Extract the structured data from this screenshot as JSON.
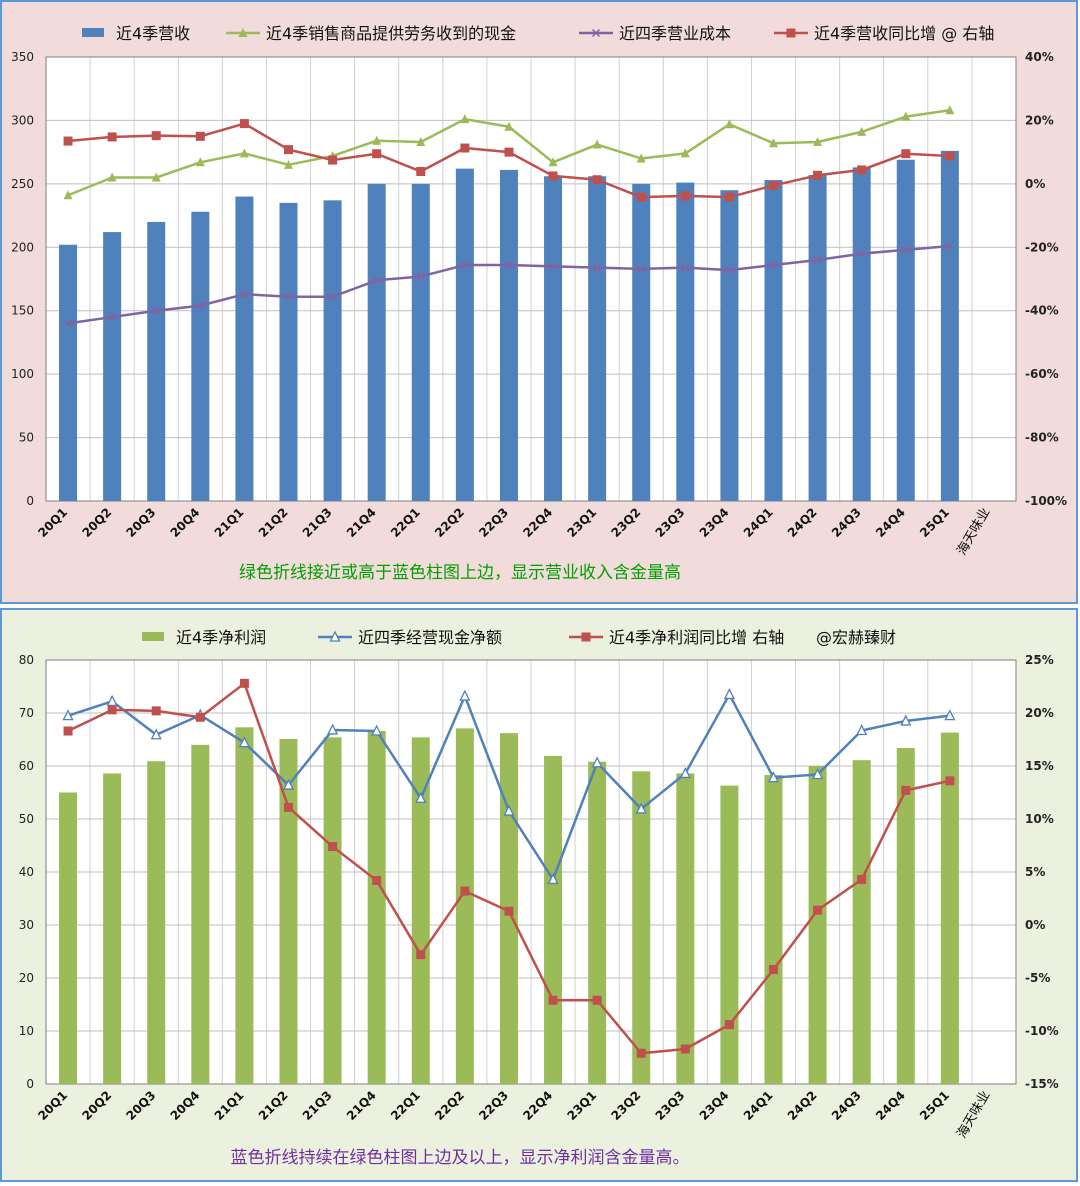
{
  "chart_data": [
    {
      "type": "bar+line",
      "categories": [
        "20Q1",
        "20Q2",
        "20Q3",
        "20Q4",
        "21Q1",
        "21Q2",
        "21Q3",
        "21Q4",
        "22Q1",
        "22Q2",
        "22Q3",
        "22Q4",
        "23Q1",
        "23Q2",
        "23Q3",
        "23Q4",
        "24Q1",
        "24Q2",
        "24Q3",
        "24Q4",
        "25Q1"
      ],
      "extra_category_label": "海天味业",
      "series": [
        {
          "name": "近4季营收",
          "kind": "bar",
          "axis": "left",
          "color": "#4F81BD",
          "values": [
            202,
            212,
            220,
            228,
            240,
            235,
            237,
            250,
            250,
            262,
            261,
            256,
            256,
            250,
            251,
            245,
            253,
            257,
            263,
            269,
            276
          ]
        },
        {
          "name": "近4季销售商品提供劳务收到的现金",
          "kind": "line",
          "axis": "left",
          "color": "#9BBB59",
          "marker": "triangle",
          "values": [
            241,
            255,
            255,
            267,
            274,
            265,
            272,
            284,
            283,
            301,
            295,
            267,
            281,
            270,
            274,
            297,
            282,
            283,
            291,
            303,
            308
          ]
        },
        {
          "name": "近四季营业成本",
          "kind": "line",
          "axis": "left",
          "color": "#8064A2",
          "marker": "x",
          "values": [
            140,
            145,
            150,
            154,
            163,
            161,
            161,
            174,
            177,
            186,
            186,
            185,
            184,
            183,
            184,
            182,
            186,
            190,
            195,
            198,
            201
          ]
        },
        {
          "name": "近4季营收同比增 @ 右轴",
          "kind": "line",
          "axis": "right",
          "color": "#C0504D",
          "marker": "square",
          "values": [
            13.5,
            14.8,
            15.2,
            15,
            19,
            10.8,
            7.5,
            9.5,
            3.9,
            11.3,
            10,
            2.5,
            1.3,
            -4.2,
            -3.8,
            -4.2,
            -0.5,
            2.7,
            4.4,
            9.5,
            8.8
          ]
        }
      ],
      "ylim_left": [
        0,
        350
      ],
      "yticks_left": [
        0,
        50,
        100,
        150,
        200,
        250,
        300,
        350
      ],
      "ylim_right": [
        -100,
        40
      ],
      "yticks_right": [
        "-100%",
        "-80%",
        "-60%",
        "-40%",
        "-20%",
        "0%",
        "20%",
        "40%"
      ],
      "annotation": "绿色折线接近或高于蓝色柱图上边，显示营业收入含金量高",
      "colors": {
        "background": "#F2DCDB",
        "border": "#5B9BD5",
        "annotation": "#00A000"
      }
    },
    {
      "type": "bar+line",
      "categories": [
        "20Q1",
        "20Q2",
        "20Q3",
        "20Q4",
        "21Q1",
        "21Q2",
        "21Q3",
        "21Q4",
        "22Q1",
        "22Q2",
        "22Q3",
        "22Q4",
        "23Q1",
        "23Q2",
        "23Q3",
        "23Q4",
        "24Q1",
        "24Q2",
        "24Q3",
        "24Q4",
        "25Q1"
      ],
      "extra_category_label": "海天味业",
      "series": [
        {
          "name": "近4季净利润",
          "kind": "bar",
          "axis": "left",
          "color": "#9BBB59",
          "values": [
            55,
            58.6,
            60.9,
            64,
            67.3,
            65.1,
            65.4,
            66.6,
            65.4,
            67.1,
            66.2,
            61.9,
            60.8,
            59,
            58.6,
            56.3,
            58.3,
            60,
            61.1,
            63.4,
            66.3
          ]
        },
        {
          "name": "近四季经营现金净额",
          "kind": "line",
          "axis": "left",
          "color": "#4F81BD",
          "marker": "triangle-open",
          "values": [
            69.5,
            72.2,
            65.9,
            69.6,
            64.4,
            56.4,
            66.8,
            66.6,
            53.9,
            73.2,
            51.5,
            38.6,
            60.6,
            51.9,
            58.6,
            73.5,
            57.8,
            58.4,
            66.7,
            68.5,
            69.5
          ]
        },
        {
          "name": "近4季净利润同比增 右轴",
          "kind": "line",
          "axis": "right",
          "color": "#C0504D",
          "marker": "square",
          "values": [
            18.3,
            20.3,
            20.2,
            19.6,
            22.8,
            11.1,
            7.4,
            4.2,
            -2.8,
            3.2,
            1.3,
            -7.1,
            -7.1,
            -12.1,
            -11.7,
            -9.4,
            -4.2,
            1.4,
            4.3,
            12.7,
            13.6
          ]
        }
      ],
      "legend_extra": "@宏赫臻财",
      "ylim_left": [
        0,
        80
      ],
      "yticks_left": [
        0,
        10,
        20,
        30,
        40,
        50,
        60,
        70,
        80
      ],
      "ylim_right": [
        -15,
        25
      ],
      "yticks_right": [
        "-15%",
        "-10%",
        "-5%",
        "0%",
        "5%",
        "10%",
        "15%",
        "20%",
        "25%"
      ],
      "annotation": "蓝色折线持续在绿色柱图上边及以上，显示净利润含金量高。",
      "colors": {
        "background": "#EBF1DE",
        "border": "#5B9BD5",
        "annotation": "#7030A0"
      }
    }
  ]
}
